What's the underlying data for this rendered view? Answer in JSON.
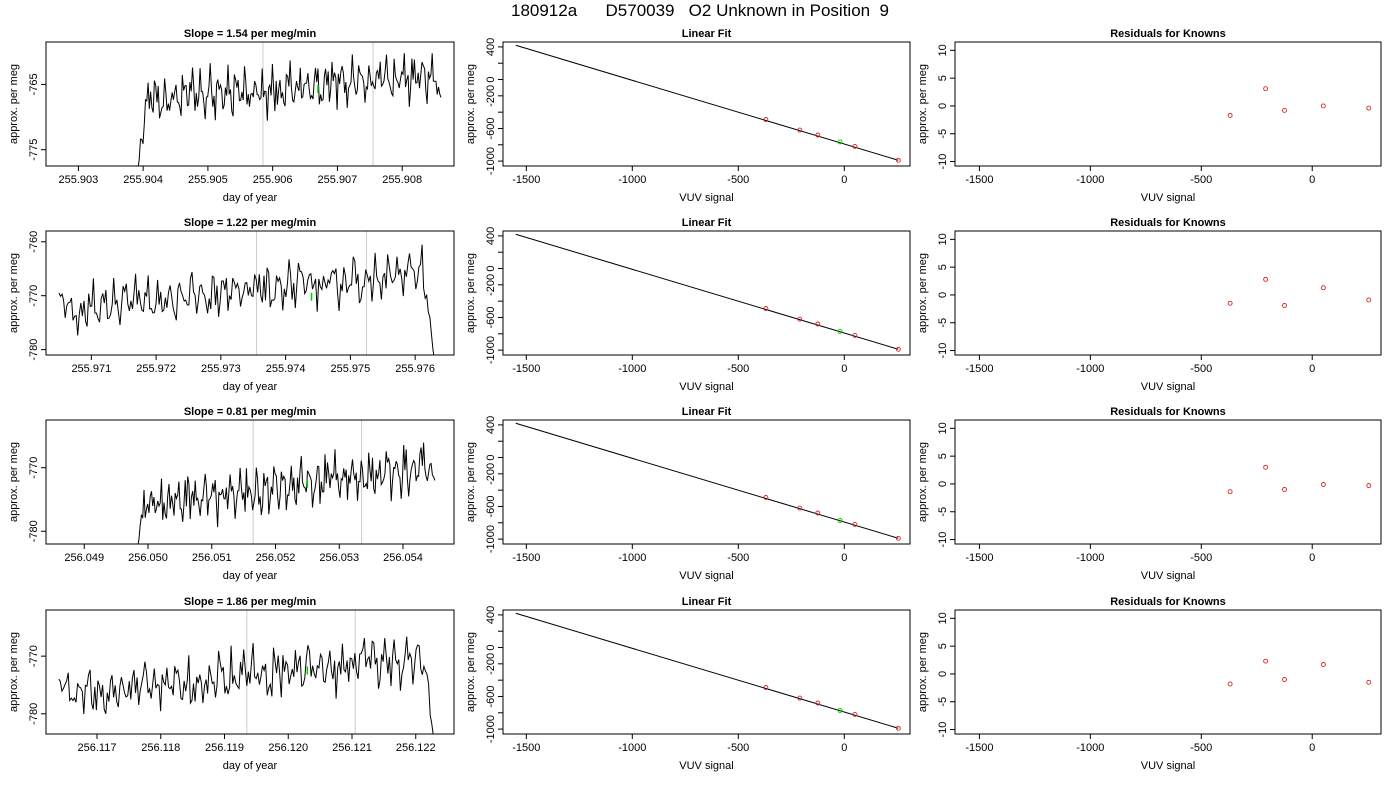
{
  "page_title": "180912a      D570039   O2 Unknown in Position  9",
  "colors": {
    "trace": "#000000",
    "vlines": "#cccccc",
    "known_points": "#d62728",
    "unknown_point": "#00cc00",
    "fit_line": "#000000"
  },
  "chart_data": [
    {
      "type": "line",
      "title": "Slope =  1.54  per meg/min",
      "xlabel": "day of year",
      "ylabel": "approx. per meg",
      "xlim": [
        255.9025,
        255.9088
      ],
      "ylim": [
        -777.5,
        -758.5
      ],
      "xticks": [
        "255.903",
        "255.904",
        "255.905",
        "255.906",
        "255.907",
        "255.908"
      ],
      "xtick_values": [
        255.903,
        255.904,
        255.905,
        255.906,
        255.907,
        255.908
      ],
      "yticks": [
        "-775",
        "-765"
      ],
      "ytick_values": [
        -775,
        -765
      ],
      "trace_x_start": 255.9039,
      "trace_x_end": 255.9086,
      "trace_start": -780,
      "trace_base": -767.5,
      "trace_trend": 4,
      "trace_noise": 2.2,
      "trace_end": -767,
      "vlines": [
        255.90585,
        255.90755
      ],
      "unknown_point": [
        255.9067,
        -765.7
      ]
    },
    {
      "type": "line",
      "title": "Slope =  1.22  per meg/min",
      "xlabel": "day of year",
      "ylabel": "approx. per meg",
      "xlim": [
        255.9703,
        255.9766
      ],
      "ylim": [
        -781,
        -758
      ],
      "xticks": [
        "255.971",
        "255.972",
        "255.973",
        "255.974",
        "255.975",
        "255.976"
      ],
      "xtick_values": [
        255.971,
        255.972,
        255.973,
        255.974,
        255.975,
        255.976
      ],
      "yticks": [
        "-780",
        "-770",
        "-760"
      ],
      "ytick_values": [
        -780,
        -770,
        -760
      ],
      "trace_x_start": 255.9705,
      "trace_x_end": 255.9763,
      "trace_start": -769.5,
      "trace_base": -772.5,
      "trace_trend": 7,
      "trace_noise": 2.6,
      "trace_end": -782,
      "vlines": [
        255.97355,
        255.97525
      ],
      "unknown_point": [
        255.9744,
        -770.2
      ]
    },
    {
      "type": "line",
      "title": "Slope =  0.81  per meg/min",
      "xlabel": "day of year",
      "ylabel": "approx. per meg",
      "xlim": [
        256.0484,
        256.0548
      ],
      "ylim": [
        -782,
        -762.5
      ],
      "xticks": [
        "256.049",
        "256.050",
        "256.051",
        "256.052",
        "256.053",
        "256.054"
      ],
      "xtick_values": [
        256.049,
        256.05,
        256.051,
        256.052,
        256.053,
        256.054
      ],
      "yticks": [
        "-780",
        "-770"
      ],
      "ytick_values": [
        -780,
        -770
      ],
      "trace_x_start": 256.0498,
      "trace_x_end": 256.0545,
      "trace_start": -784,
      "trace_base": -776,
      "trace_trend": 6,
      "trace_noise": 2.3,
      "trace_end": -772,
      "vlines": [
        256.05165,
        256.05335
      ],
      "unknown_point": [
        256.0525,
        -772.5
      ]
    },
    {
      "type": "line",
      "title": "Slope =  1.86  per meg/min",
      "xlabel": "day of year",
      "ylabel": "approx. per meg",
      "xlim": [
        256.1162,
        256.1226
      ],
      "ylim": [
        -783.5,
        -762
      ],
      "xticks": [
        "256.117",
        "256.118",
        "256.119",
        "256.120",
        "256.121",
        "256.122"
      ],
      "xtick_values": [
        256.117,
        256.118,
        256.119,
        256.12,
        256.121,
        256.122
      ],
      "yticks": [
        "-780",
        "-770"
      ],
      "ytick_values": [
        -780,
        -770
      ],
      "trace_x_start": 256.1164,
      "trace_x_end": 256.1223,
      "trace_start": -774,
      "trace_base": -777,
      "trace_trend": 7,
      "trace_noise": 2.6,
      "trace_end": -786,
      "vlines": [
        256.11935,
        256.12105
      ],
      "unknown_point": [
        256.1203,
        -772.5
      ]
    },
    {
      "type": "scatter",
      "title": "Linear Fit",
      "xlabel": "VUV signal",
      "ylabel": "approx. per meg",
      "xlim": [
        -1610,
        310
      ],
      "ylim": [
        -1060,
        460
      ],
      "xticks": [
        "-1500",
        "-1000",
        "-500",
        "0"
      ],
      "xtick_values": [
        -1500,
        -1000,
        -500,
        0
      ],
      "yticks": [
        "-1000",
        "-600",
        "-200",
        "0",
        "400"
      ],
      "ytick_values": [
        -1000,
        -600,
        -200,
        0,
        400
      ],
      "ytick_minor": [
        -800,
        -400,
        200
      ],
      "fit_line": [
        [
          -1550,
          420
        ],
        [
          255,
          -990
        ]
      ],
      "known": [
        [
          -370,
          -490
        ],
        [
          -210,
          -620
        ],
        [
          -125,
          -680
        ],
        [
          50,
          -820
        ],
        [
          255,
          -990
        ]
      ],
      "unknown": [
        [
          -20,
          -765
        ]
      ]
    },
    {
      "type": "scatter",
      "title": "Linear Fit",
      "xlabel": "VUV signal",
      "ylabel": "approx. per meg",
      "xlim": [
        -1610,
        310
      ],
      "ylim": [
        -1060,
        460
      ],
      "xticks": [
        "-1500",
        "-1000",
        "-500",
        "0"
      ],
      "xtick_values": [
        -1500,
        -1000,
        -500,
        0
      ],
      "yticks": [
        "-1000",
        "-600",
        "-200",
        "0",
        "400"
      ],
      "ytick_values": [
        -1000,
        -600,
        -200,
        0,
        400
      ],
      "ytick_minor": [
        -800,
        -400,
        200
      ],
      "fit_line": [
        [
          -1550,
          420
        ],
        [
          255,
          -990
        ]
      ],
      "known": [
        [
          -370,
          -490
        ],
        [
          -210,
          -620
        ],
        [
          -125,
          -680
        ],
        [
          50,
          -820
        ],
        [
          255,
          -990
        ]
      ],
      "unknown": [
        [
          -20,
          -770
        ]
      ]
    },
    {
      "type": "scatter",
      "title": "Linear Fit",
      "xlabel": "VUV signal",
      "ylabel": "approx. per meg",
      "xlim": [
        -1610,
        310
      ],
      "ylim": [
        -1060,
        460
      ],
      "xticks": [
        "-1500",
        "-1000",
        "-500",
        "0"
      ],
      "xtick_values": [
        -1500,
        -1000,
        -500,
        0
      ],
      "yticks": [
        "-1000",
        "-600",
        "-200",
        "0",
        "400"
      ],
      "ytick_values": [
        -1000,
        -600,
        -200,
        0,
        400
      ],
      "ytick_minor": [
        -800,
        -400,
        200
      ],
      "fit_line": [
        [
          -1550,
          420
        ],
        [
          255,
          -990
        ]
      ],
      "known": [
        [
          -370,
          -490
        ],
        [
          -210,
          -620
        ],
        [
          -125,
          -680
        ],
        [
          50,
          -820
        ],
        [
          255,
          -990
        ]
      ],
      "unknown": [
        [
          -20,
          -772
        ]
      ]
    },
    {
      "type": "scatter",
      "title": "Linear Fit",
      "xlabel": "VUV signal",
      "ylabel": "approx. per meg",
      "xlim": [
        -1610,
        310
      ],
      "ylim": [
        -1060,
        460
      ],
      "xticks": [
        "-1500",
        "-1000",
        "-500",
        "0"
      ],
      "xtick_values": [
        -1500,
        -1000,
        -500,
        0
      ],
      "yticks": [
        "-1000",
        "-600",
        "-200",
        "0",
        "400"
      ],
      "ytick_values": [
        -1000,
        -600,
        -200,
        0,
        400
      ],
      "ytick_minor": [
        -800,
        -400,
        200
      ],
      "fit_line": [
        [
          -1550,
          420
        ],
        [
          255,
          -990
        ]
      ],
      "known": [
        [
          -370,
          -490
        ],
        [
          -210,
          -620
        ],
        [
          -125,
          -680
        ],
        [
          50,
          -820
        ],
        [
          255,
          -990
        ]
      ],
      "unknown": [
        [
          -20,
          -772
        ]
      ]
    },
    {
      "type": "scatter",
      "title": "Residuals for Knowns",
      "xlabel": "VUV signal",
      "ylabel": "approx. per meg",
      "xlim": [
        -1610,
        310
      ],
      "ylim": [
        -10.8,
        11.5
      ],
      "xticks": [
        "-1500",
        "-1000",
        "-500",
        "0"
      ],
      "xtick_values": [
        -1500,
        -1000,
        -500,
        0
      ],
      "yticks": [
        "-10",
        "-5",
        "0",
        "5",
        "10"
      ],
      "ytick_values": [
        -10,
        -5,
        0,
        5,
        10
      ],
      "points": [
        [
          -370,
          -1.7
        ],
        [
          -210,
          3.1
        ],
        [
          -125,
          -0.8
        ],
        [
          50,
          0.0
        ],
        [
          255,
          -0.4
        ]
      ]
    },
    {
      "type": "scatter",
      "title": "Residuals for Knowns",
      "xlabel": "VUV signal",
      "ylabel": "approx. per meg",
      "xlim": [
        -1610,
        310
      ],
      "ylim": [
        -10.8,
        11.5
      ],
      "xticks": [
        "-1500",
        "-1000",
        "-500",
        "0"
      ],
      "xtick_values": [
        -1500,
        -1000,
        -500,
        0
      ],
      "yticks": [
        "-10",
        "-5",
        "0",
        "5",
        "10"
      ],
      "ytick_values": [
        -10,
        -5,
        0,
        5,
        10
      ],
      "points": [
        [
          -370,
          -1.5
        ],
        [
          -210,
          2.8
        ],
        [
          -125,
          -1.9
        ],
        [
          50,
          1.3
        ],
        [
          255,
          -0.9
        ]
      ]
    },
    {
      "type": "scatter",
      "title": "Residuals for Knowns",
      "xlabel": "VUV signal",
      "ylabel": "approx. per meg",
      "xlim": [
        -1610,
        310
      ],
      "ylim": [
        -10.8,
        11.5
      ],
      "xticks": [
        "-1500",
        "-1000",
        "-500",
        "0"
      ],
      "xtick_values": [
        -1500,
        -1000,
        -500,
        0
      ],
      "yticks": [
        "-10",
        "-5",
        "0",
        "5",
        "10"
      ],
      "ytick_values": [
        -10,
        -5,
        0,
        5,
        10
      ],
      "points": [
        [
          -370,
          -1.4
        ],
        [
          -210,
          3.0
        ],
        [
          -125,
          -1.0
        ],
        [
          50,
          -0.1
        ],
        [
          255,
          -0.3
        ]
      ]
    },
    {
      "type": "scatter",
      "title": "Residuals for Knowns",
      "xlabel": "VUV signal",
      "ylabel": "approx. per meg",
      "xlim": [
        -1610,
        310
      ],
      "ylim": [
        -10.8,
        11.5
      ],
      "xticks": [
        "-1500",
        "-1000",
        "-500",
        "0"
      ],
      "xtick_values": [
        -1500,
        -1000,
        -500,
        0
      ],
      "yticks": [
        "-10",
        "-5",
        "0",
        "5",
        "10"
      ],
      "ytick_values": [
        -10,
        -5,
        0,
        5,
        10
      ],
      "points": [
        [
          -370,
          -1.8
        ],
        [
          -210,
          2.3
        ],
        [
          -125,
          -1.0
        ],
        [
          50,
          1.7
        ],
        [
          255,
          -1.5
        ]
      ]
    }
  ]
}
